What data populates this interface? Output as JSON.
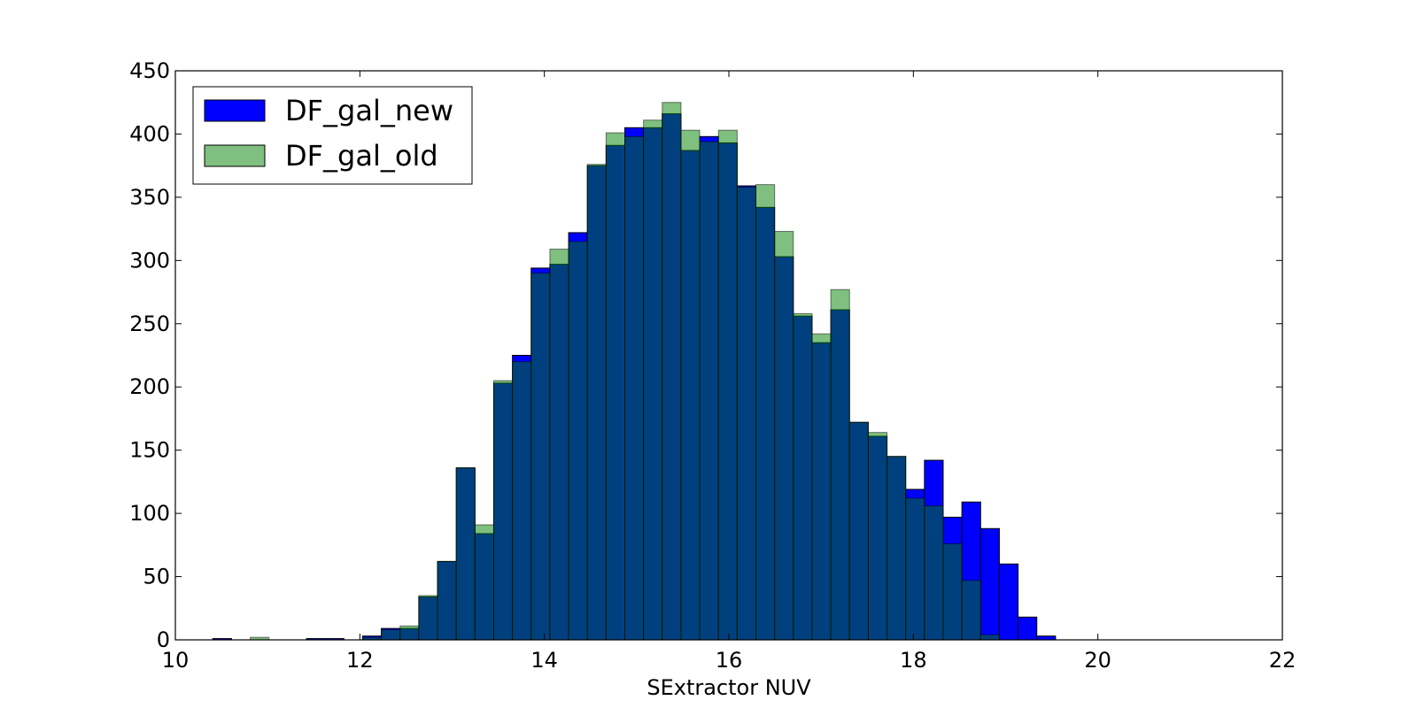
{
  "chart_data": {
    "type": "bar",
    "subtype": "overlaid-histogram",
    "xlabel": "SExtractor NUV",
    "ylabel": "",
    "xlim": [
      10,
      22
    ],
    "ylim": [
      0,
      450
    ],
    "xticks": [
      "10",
      "12",
      "14",
      "16",
      "18",
      "20",
      "22"
    ],
    "yticks": [
      "0",
      "50",
      "100",
      "150",
      "200",
      "250",
      "300",
      "350",
      "400",
      "450"
    ],
    "grid": false,
    "legend_position": "top-left",
    "bin_width": 0.203,
    "bin_edges": [
      10.0,
      10.203,
      10.406,
      10.609,
      10.812,
      11.015,
      11.218,
      11.421,
      11.624,
      11.827,
      12.03,
      12.233,
      12.436,
      12.639,
      12.842,
      13.045,
      13.248,
      13.451,
      13.654,
      13.857,
      14.06,
      14.263,
      14.466,
      14.669,
      14.872,
      15.075,
      15.278,
      15.481,
      15.684,
      15.887,
      16.09,
      16.293,
      16.496,
      16.699,
      16.902,
      17.105,
      17.308,
      17.511,
      17.714,
      17.917,
      18.12,
      18.323,
      18.526,
      18.729,
      18.932,
      19.135,
      19.338,
      19.541,
      19.744
    ],
    "series": [
      {
        "name": "DF_gal_new",
        "color": "#0000ff",
        "alpha": 1.0,
        "values": [
          0,
          0,
          1,
          0,
          0,
          0,
          0,
          1,
          1,
          0,
          3,
          9,
          9,
          34,
          62,
          136,
          84,
          203,
          225,
          294,
          297,
          322,
          375,
          391,
          405,
          405,
          416,
          387,
          398,
          393,
          359,
          342,
          303,
          256,
          235,
          261,
          172,
          161,
          145,
          119,
          142,
          97,
          109,
          88,
          60,
          18,
          3,
          0
        ]
      },
      {
        "name": "DF_gal_old",
        "color": "#008000",
        "alpha": 0.5,
        "values": [
          0,
          0,
          0,
          0,
          2,
          0,
          0,
          0,
          0,
          0,
          2,
          8,
          11,
          35,
          62,
          136,
          91,
          205,
          220,
          290,
          309,
          315,
          376,
          401,
          398,
          411,
          425,
          403,
          394,
          403,
          358,
          360,
          323,
          258,
          242,
          277,
          172,
          164,
          145,
          112,
          106,
          76,
          47,
          4,
          0,
          0,
          0,
          0
        ]
      }
    ]
  }
}
